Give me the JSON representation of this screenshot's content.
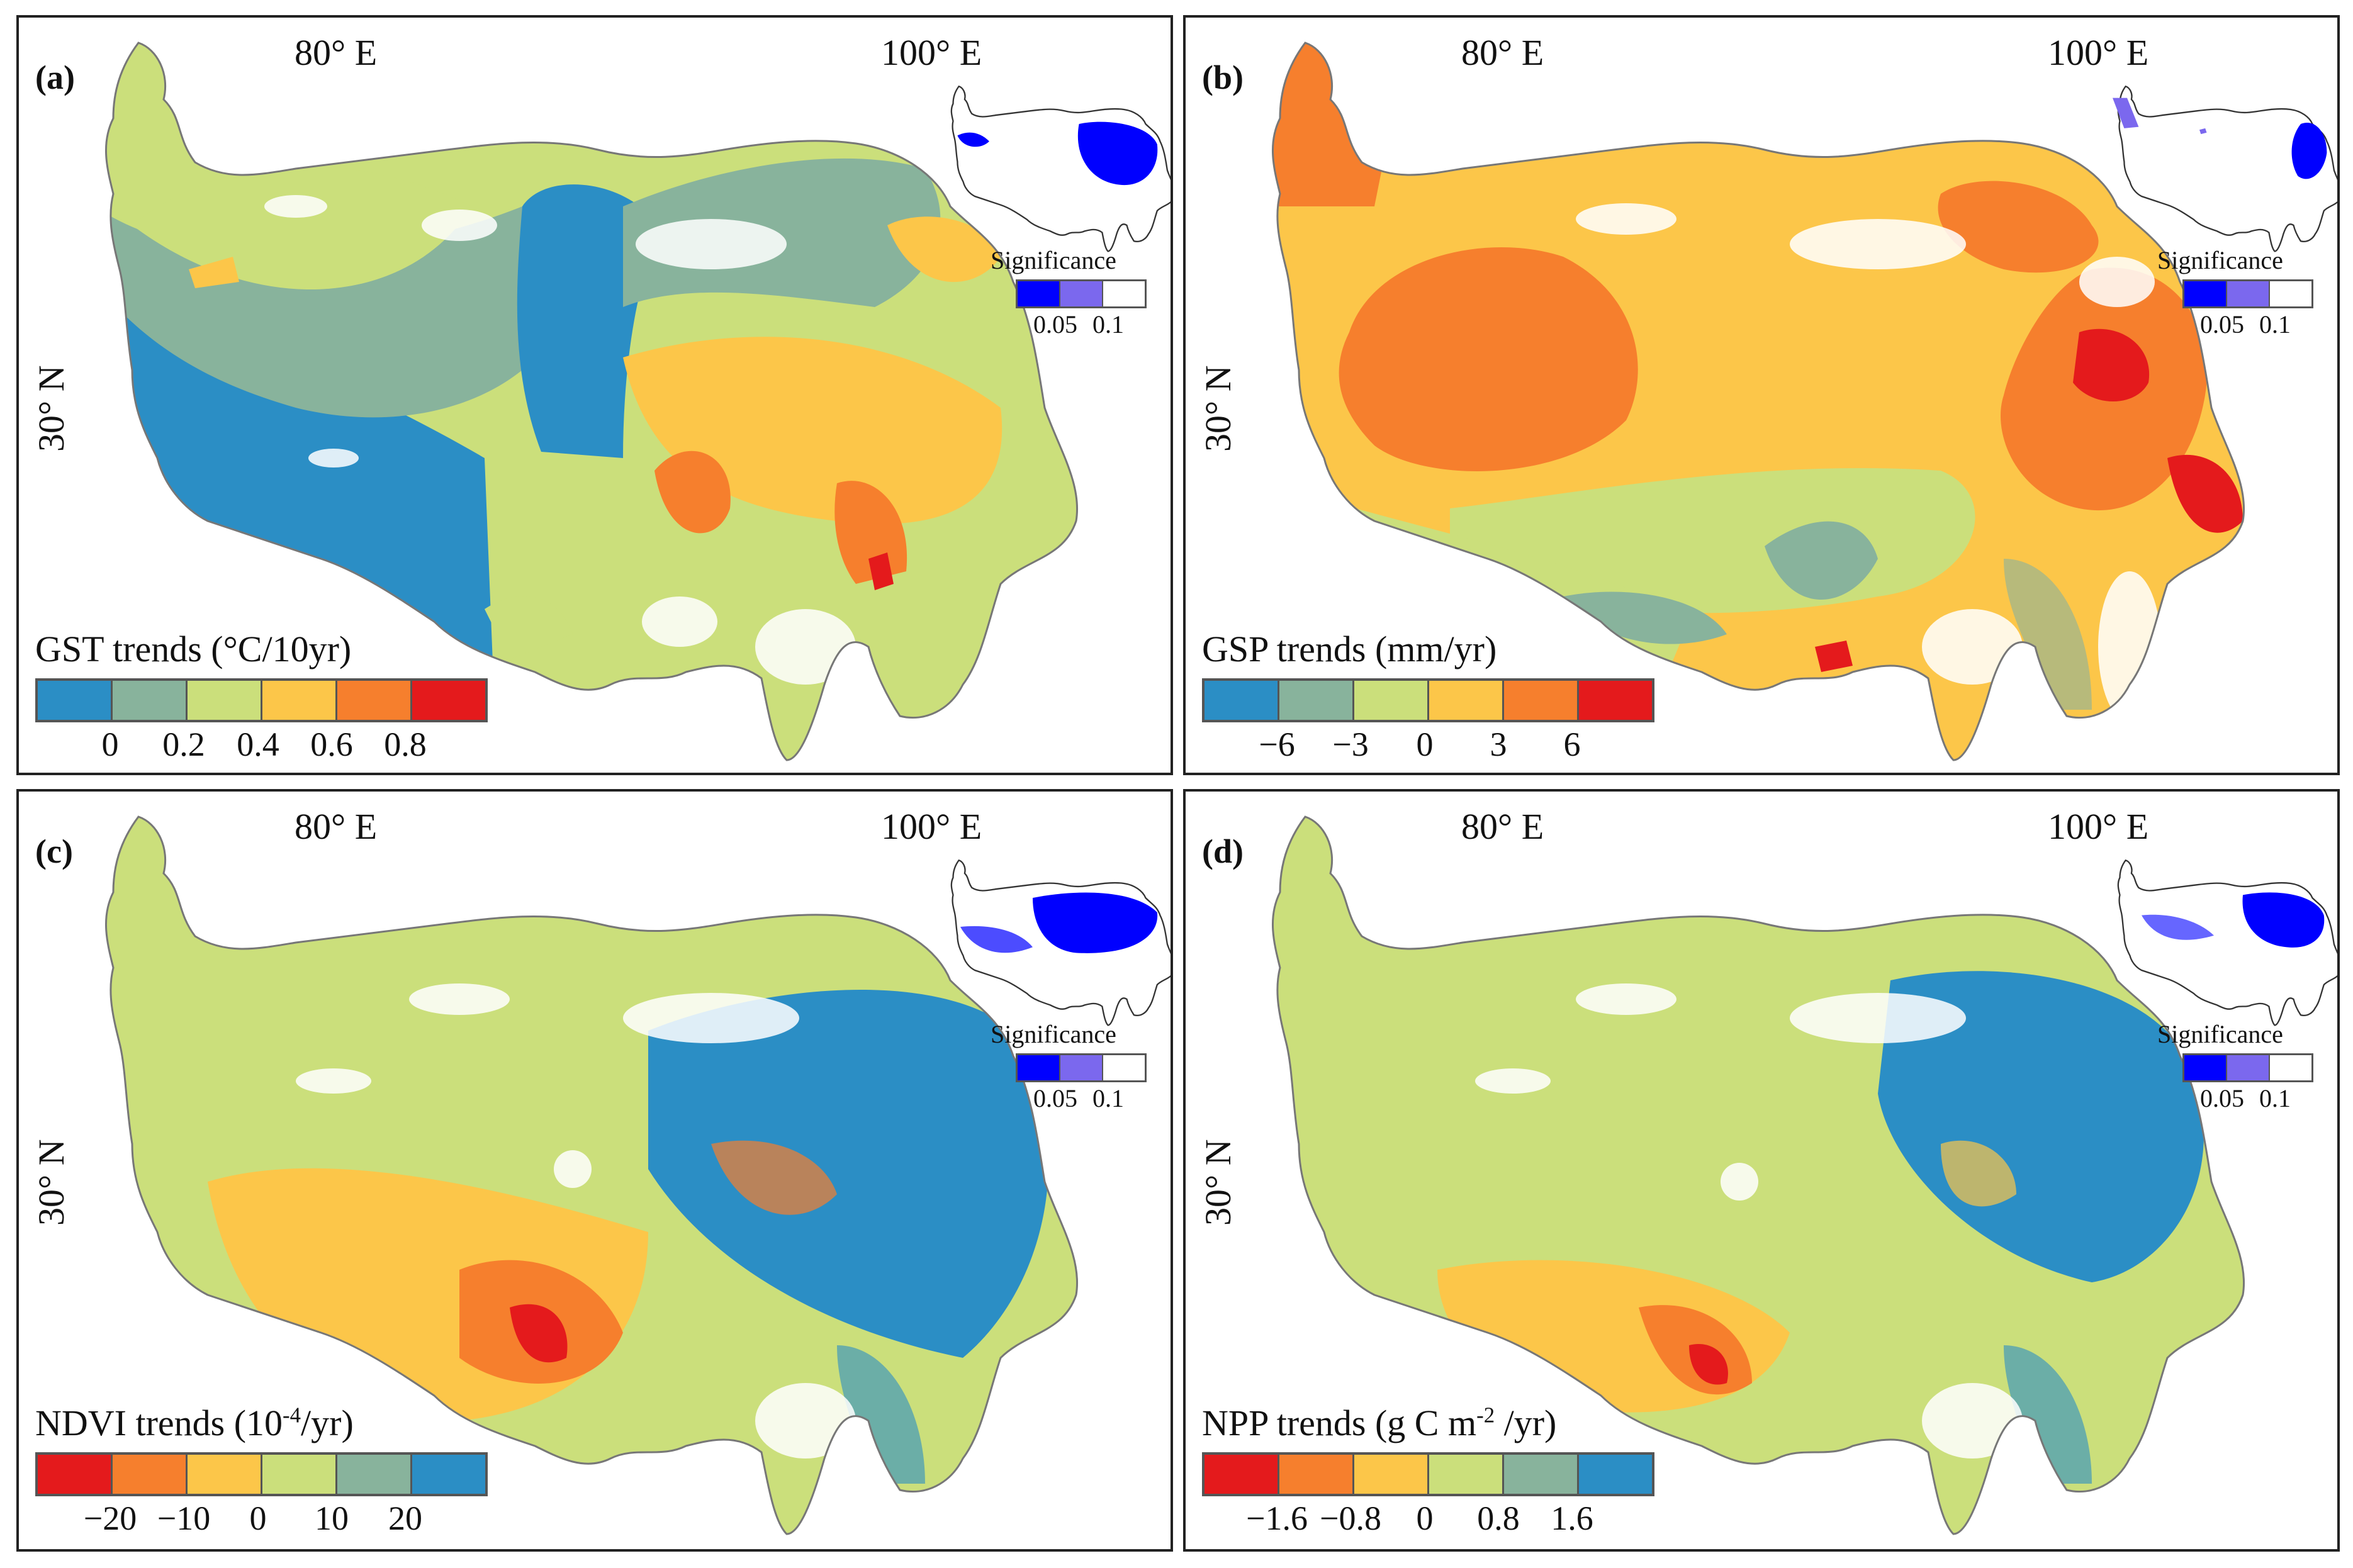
{
  "colors": {
    "ramp6": [
      "#2b8ec5",
      "#88b39c",
      "#cbdf7b",
      "#fcc649",
      "#f67f2d",
      "#e41a1c"
    ],
    "ramp6_rev": [
      "#e41a1c",
      "#f67f2d",
      "#fcc649",
      "#cbdf7b",
      "#88b39c",
      "#2b8ec5"
    ],
    "significance": [
      "#0000ff",
      "#7b68ee",
      "#ffffff"
    ],
    "outline": "#777777"
  },
  "axes": {
    "lon80": "80° E",
    "lon100": "100° E",
    "lat30": "30° N"
  },
  "significance": {
    "title": "Significance",
    "ticks": [
      "0.05",
      "0.1"
    ]
  },
  "panels": [
    {
      "label": "(a)",
      "legend_title": "GST trends (°C/10yr)",
      "ticks": [
        "0",
        "0.2",
        "0.4",
        "0.6",
        "0.8"
      ]
    },
    {
      "label": "(b)",
      "legend_title": "GSP trends (mm/yr)",
      "ticks": [
        "−6",
        "−3",
        "0",
        "3",
        "6"
      ]
    },
    {
      "label": "(c)",
      "legend_title_main": "NDVI trends (10",
      "legend_title_sup": "-4",
      "legend_title_end": "/yr)",
      "ticks": [
        "−20",
        "−10",
        "0",
        "10",
        "20"
      ]
    },
    {
      "label": "(d)",
      "legend_title_main": "NPP trends (g C m",
      "legend_title_sup": "-2",
      "legend_title_end": " /yr)",
      "ticks": [
        "−1.6",
        "−0.8",
        "0",
        "0.8",
        "1.6"
      ]
    }
  ]
}
